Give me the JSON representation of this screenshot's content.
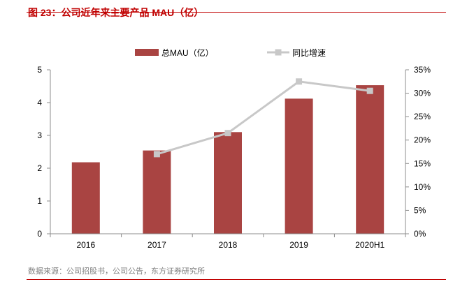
{
  "figure": {
    "title": "图 23：公司近年来主要产品 MAU（亿）",
    "source": "数据来源：公司招股书，公司公告，东方证券研究所"
  },
  "colors": {
    "bar": "#a94442",
    "line": "#c8c8c8",
    "accent": "#c00000"
  },
  "chart_data": {
    "type": "bar",
    "categories": [
      "2016",
      "2017",
      "2018",
      "2019",
      "2020H1"
    ],
    "series": [
      {
        "name": "总MAU（亿）",
        "type": "bar",
        "axis": "left",
        "values": [
          2.18,
          2.54,
          3.1,
          4.12,
          4.53
        ]
      },
      {
        "name": "同比增速",
        "type": "line",
        "axis": "right",
        "values": [
          null,
          0.17,
          0.215,
          0.325,
          0.305
        ]
      }
    ],
    "y_left": {
      "min": 0,
      "max": 5,
      "ticks": [
        "0",
        "1",
        "2",
        "3",
        "4",
        "5"
      ]
    },
    "y_right": {
      "min": 0,
      "max": 0.35,
      "ticks": [
        "0%",
        "5%",
        "10%",
        "15%",
        "20%",
        "25%",
        "30%",
        "35%"
      ]
    },
    "legend": "top-center",
    "grid": false
  }
}
